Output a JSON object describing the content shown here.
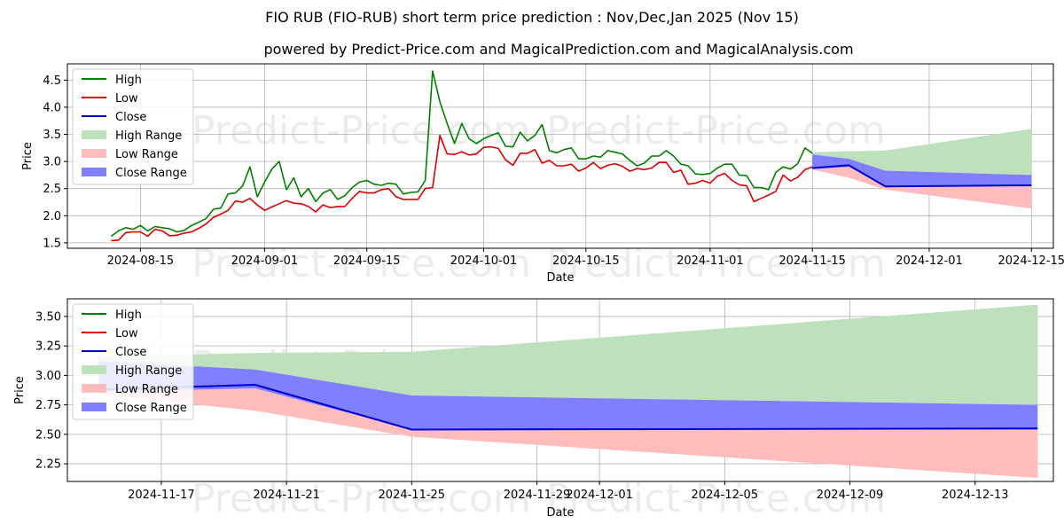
{
  "title": "FIO RUB (FIO-RUB) short term price prediction : Nov,Dec,Jan 2025 (Nov 15)",
  "subtitle": "powered by Predict-Price.com and MagicalPrediction.com and MagicalAnalysis.com",
  "watermark": "Predict-Price.com",
  "colors": {
    "high": "#008000",
    "low": "#e00000",
    "close": "#0000d0",
    "high_range": "#bde0bd",
    "low_range": "#ffbcbc",
    "close_range": "#7f7fff",
    "grid": "#b0b0b0"
  },
  "chart_data": [
    {
      "type": "line",
      "xlabel": "Date",
      "ylabel": "Price",
      "x_is_date": true,
      "xlim": [
        "2024-08-05",
        "2024-12-18"
      ],
      "ylim": [
        1.4,
        4.8
      ],
      "xticks": [
        "2024-08-15",
        "2024-09-01",
        "2024-09-15",
        "2024-10-01",
        "2024-10-15",
        "2024-11-01",
        "2024-11-15",
        "2024-12-01",
        "2024-12-15"
      ],
      "yticks": [
        1.5,
        2.0,
        2.5,
        3.0,
        3.5,
        4.0,
        4.5
      ],
      "legend": [
        "High",
        "Low",
        "Close",
        "High Range",
        "Low Range",
        "Close Range"
      ],
      "legend_position": "top-left",
      "x": [
        "2024-08-11",
        "2024-08-12",
        "2024-08-13",
        "2024-08-14",
        "2024-08-15",
        "2024-08-16",
        "2024-08-17",
        "2024-08-18",
        "2024-08-19",
        "2024-08-20",
        "2024-08-21",
        "2024-08-22",
        "2024-08-23",
        "2024-08-24",
        "2024-08-25",
        "2024-08-26",
        "2024-08-27",
        "2024-08-28",
        "2024-08-29",
        "2024-08-30",
        "2024-08-31",
        "2024-09-01",
        "2024-09-02",
        "2024-09-03",
        "2024-09-04",
        "2024-09-05",
        "2024-09-06",
        "2024-09-07",
        "2024-09-08",
        "2024-09-09",
        "2024-09-10",
        "2024-09-11",
        "2024-09-12",
        "2024-09-13",
        "2024-09-14",
        "2024-09-15",
        "2024-09-16",
        "2024-09-17",
        "2024-09-18",
        "2024-09-19",
        "2024-09-20",
        "2024-09-21",
        "2024-09-22",
        "2024-09-23",
        "2024-09-24",
        "2024-09-25",
        "2024-09-26",
        "2024-09-27",
        "2024-09-28",
        "2024-09-29",
        "2024-09-30",
        "2024-10-01",
        "2024-10-02",
        "2024-10-03",
        "2024-10-04",
        "2024-10-05",
        "2024-10-06",
        "2024-10-07",
        "2024-10-08",
        "2024-10-09",
        "2024-10-10",
        "2024-10-11",
        "2024-10-12",
        "2024-10-13",
        "2024-10-14",
        "2024-10-15",
        "2024-10-16",
        "2024-10-17",
        "2024-10-18",
        "2024-10-19",
        "2024-10-20",
        "2024-10-21",
        "2024-10-22",
        "2024-10-23",
        "2024-10-24",
        "2024-10-25",
        "2024-10-26",
        "2024-10-27",
        "2024-10-28",
        "2024-10-29",
        "2024-10-30",
        "2024-10-31",
        "2024-11-01",
        "2024-11-02",
        "2024-11-03",
        "2024-11-04",
        "2024-11-05",
        "2024-11-06",
        "2024-11-07",
        "2024-11-08",
        "2024-11-09",
        "2024-11-10",
        "2024-11-11",
        "2024-11-12",
        "2024-11-13",
        "2024-11-14"
      ],
      "series": [
        {
          "name": "High",
          "values": [
            1.62,
            1.72,
            1.78,
            1.75,
            1.82,
            1.72,
            1.8,
            1.78,
            1.76,
            1.7,
            1.73,
            1.82,
            1.88,
            1.95,
            2.12,
            2.14,
            2.4,
            2.42,
            2.55,
            2.9,
            2.35,
            2.62,
            2.86,
            3.0,
            2.48,
            2.7,
            2.35,
            2.5,
            2.26,
            2.42,
            2.48,
            2.3,
            2.37,
            2.52,
            2.62,
            2.65,
            2.58,
            2.56,
            2.6,
            2.58,
            2.4,
            2.43,
            2.44,
            2.65,
            4.67,
            4.1,
            3.7,
            3.33,
            3.7,
            3.42,
            3.33,
            3.42,
            3.48,
            3.53,
            3.28,
            3.27,
            3.54,
            3.38,
            3.48,
            3.68,
            3.2,
            3.16,
            3.22,
            3.25,
            3.05,
            3.05,
            3.1,
            3.08,
            3.2,
            3.17,
            3.14,
            3.02,
            2.92,
            2.97,
            3.1,
            3.1,
            3.2,
            3.1,
            2.95,
            2.92,
            2.77,
            2.76,
            2.78,
            2.88,
            2.95,
            2.95,
            2.75,
            2.74,
            2.52,
            2.52,
            2.48,
            2.8,
            2.9,
            2.86,
            2.96,
            3.25
          ]
        },
        {
          "name": "Low",
          "values": [
            1.54,
            1.55,
            1.69,
            1.7,
            1.7,
            1.62,
            1.75,
            1.72,
            1.63,
            1.64,
            1.68,
            1.7,
            1.77,
            1.85,
            1.97,
            2.03,
            2.1,
            2.27,
            2.25,
            2.32,
            2.2,
            2.1,
            2.16,
            2.22,
            2.28,
            2.23,
            2.22,
            2.17,
            2.07,
            2.2,
            2.15,
            2.17,
            2.17,
            2.32,
            2.45,
            2.42,
            2.42,
            2.48,
            2.5,
            2.35,
            2.3,
            2.3,
            2.3,
            2.5,
            2.52,
            3.48,
            3.14,
            3.13,
            3.18,
            3.12,
            3.14,
            3.26,
            3.27,
            3.24,
            3.03,
            2.93,
            3.15,
            3.15,
            3.22,
            2.97,
            3.02,
            2.92,
            2.92,
            2.95,
            2.82,
            2.88,
            2.98,
            2.87,
            2.93,
            2.96,
            2.91,
            2.82,
            2.87,
            2.85,
            2.88,
            2.98,
            2.98,
            2.8,
            2.84,
            2.58,
            2.6,
            2.65,
            2.6,
            2.73,
            2.78,
            2.65,
            2.57,
            2.55,
            2.26,
            2.32,
            2.38,
            2.45,
            2.75,
            2.64,
            2.71,
            2.85
          ]
        }
      ],
      "forecast": {
        "x": [
          "2024-11-15",
          "2024-11-20",
          "2024-11-25",
          "2024-12-15"
        ],
        "close": [
          2.88,
          2.93,
          2.54,
          2.56
        ],
        "close_range_top": [
          3.13,
          3.05,
          2.83,
          2.75
        ],
        "close_range_bottom": [
          2.86,
          2.9,
          2.54,
          2.55
        ],
        "high_range_top": [
          3.17,
          3.19,
          3.2,
          3.6
        ],
        "low_range_bottom": [
          2.85,
          2.7,
          2.48,
          2.13
        ],
        "extra_history": {
          "x": [
            "2024-11-15"
          ],
          "high": [
            3.15
          ],
          "low": [
            2.9
          ]
        }
      }
    },
    {
      "type": "line",
      "xlabel": "Date",
      "ylabel": "Price",
      "x_is_date": true,
      "xlim": [
        "2024-11-14",
        "2024-12-15.5"
      ],
      "ylim": [
        2.1,
        3.65
      ],
      "xticks": [
        "2024-11-17",
        "2024-11-21",
        "2024-11-25",
        "2024-11-29",
        "2024-12-01",
        "2024-12-05",
        "2024-12-09",
        "2024-12-13"
      ],
      "yticks": [
        2.25,
        2.5,
        2.75,
        3.0,
        3.25,
        3.5
      ],
      "legend": [
        "High",
        "Low",
        "Close",
        "High Range",
        "Low Range",
        "Close Range"
      ],
      "legend_position": "top-left",
      "series": [
        {
          "name": "High",
          "x": [
            "2024-11-15"
          ],
          "values": [
            3.15
          ]
        },
        {
          "name": "Low",
          "x": [
            "2024-11-15"
          ],
          "values": [
            2.9
          ]
        }
      ],
      "forecast": {
        "x": [
          "2024-11-15",
          "2024-11-20",
          "2024-11-25",
          "2024-12-15"
        ],
        "close": [
          2.88,
          2.92,
          2.54,
          2.55
        ],
        "close_range_top": [
          3.12,
          3.05,
          2.83,
          2.75
        ],
        "close_range_bottom": [
          2.86,
          2.89,
          2.54,
          2.54
        ],
        "high_range_top": [
          3.16,
          3.19,
          3.2,
          3.6
        ],
        "low_range_bottom": [
          2.84,
          2.7,
          2.48,
          2.13
        ]
      }
    }
  ]
}
